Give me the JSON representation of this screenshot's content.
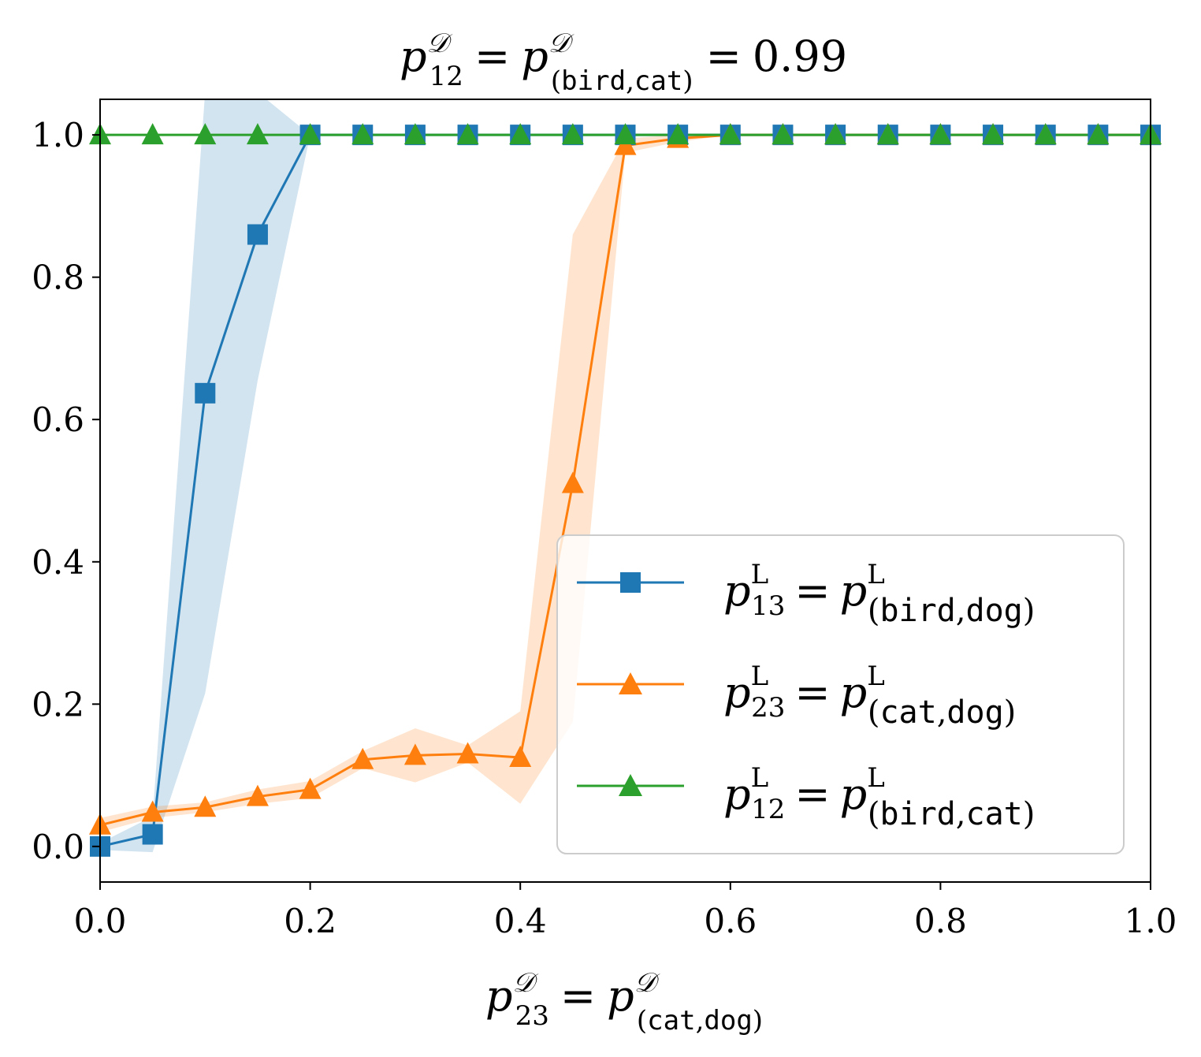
{
  "chart_data": {
    "type": "line",
    "title": {
      "lhs_var": "p",
      "lhs_sup": "𝒟",
      "lhs_sub": "12",
      "eq": "=",
      "rhs_var": "p",
      "rhs_sup": "𝒟",
      "rhs_sub_open": "(",
      "rhs_sub_a": "bird",
      "rhs_sub_comma": ",",
      "rhs_sub_b": "cat",
      "rhs_sub_close": ")",
      "eq2": "=",
      "value": "0.99"
    },
    "xlabel": {
      "lhs_var": "p",
      "lhs_sup": "𝒟",
      "lhs_sub": "23",
      "eq": "=",
      "rhs_var": "p",
      "rhs_sup": "𝒟",
      "rhs_sub_open": "(",
      "rhs_sub_a": "cat",
      "rhs_sub_comma": ",",
      "rhs_sub_b": "dog",
      "rhs_sub_close": ")"
    },
    "ylabel": "",
    "xlim": [
      0.0,
      1.0
    ],
    "ylim": [
      -0.05,
      1.05
    ],
    "xticks": [
      0.0,
      0.2,
      0.4,
      0.6,
      0.8,
      1.0
    ],
    "xtick_labels": [
      "0.0",
      "0.2",
      "0.4",
      "0.6",
      "0.8",
      "1.0"
    ],
    "yticks": [
      0.0,
      0.2,
      0.4,
      0.6,
      0.8,
      1.0
    ],
    "ytick_labels": [
      "0.0",
      "0.2",
      "0.4",
      "0.6",
      "0.8",
      "1.0"
    ],
    "grid": false,
    "legend_position": "lower-right",
    "series": [
      {
        "id": "p13",
        "color": "#1f77b4",
        "marker": "square",
        "label": {
          "var": "p",
          "sup": "L",
          "sub": "13",
          "eq": "=",
          "rvar": "p",
          "rsup": "L",
          "open": "(",
          "a": "bird",
          "comma": ",",
          "b": "dog",
          "close": ")"
        },
        "x": [
          0.0,
          0.05,
          0.1,
          0.15,
          0.2,
          0.25,
          0.3,
          0.35,
          0.4,
          0.45,
          0.5,
          0.55,
          0.6,
          0.65,
          0.7,
          0.75,
          0.8,
          0.85,
          0.9,
          0.95,
          1.0
        ],
        "y": [
          0.0,
          0.017,
          0.637,
          0.86,
          1.0,
          1.0,
          1.0,
          1.0,
          1.0,
          1.0,
          1.0,
          1.0,
          1.0,
          1.0,
          1.0,
          1.0,
          1.0,
          1.0,
          1.0,
          1.0,
          1.0
        ],
        "band_lower": [
          -0.005,
          -0.008,
          0.215,
          0.655,
          1.0,
          1.0,
          1.0,
          1.0,
          1.0,
          1.0,
          1.0,
          1.0,
          1.0,
          1.0,
          1.0,
          1.0,
          1.0,
          1.0,
          1.0,
          1.0,
          1.0
        ],
        "band_upper": [
          0.005,
          0.042,
          1.06,
          1.06,
          1.0,
          1.0,
          1.0,
          1.0,
          1.0,
          1.0,
          1.0,
          1.0,
          1.0,
          1.0,
          1.0,
          1.0,
          1.0,
          1.0,
          1.0,
          1.0,
          1.0
        ]
      },
      {
        "id": "p23",
        "color": "#ff7f0e",
        "marker": "triangle",
        "label": {
          "var": "p",
          "sup": "L",
          "sub": "23",
          "eq": "=",
          "rvar": "p",
          "rsup": "L",
          "open": "(",
          "a": "cat",
          "comma": ",",
          "b": "dog",
          "close": ")"
        },
        "x": [
          0.0,
          0.05,
          0.1,
          0.15,
          0.2,
          0.25,
          0.3,
          0.35,
          0.4,
          0.45,
          0.5,
          0.55,
          0.6,
          0.65,
          0.7,
          0.75,
          0.8,
          0.85,
          0.9,
          0.95,
          1.0
        ],
        "y": [
          0.03,
          0.048,
          0.055,
          0.07,
          0.08,
          0.122,
          0.128,
          0.13,
          0.125,
          0.51,
          0.985,
          0.995,
          1.0,
          1.0,
          1.0,
          1.0,
          1.0,
          1.0,
          1.0,
          1.0,
          1.0
        ],
        "band_lower": [
          0.02,
          0.04,
          0.048,
          0.06,
          0.068,
          0.11,
          0.09,
          0.118,
          0.06,
          0.175,
          0.975,
          0.99,
          1.0,
          1.0,
          1.0,
          1.0,
          1.0,
          1.0,
          1.0,
          1.0,
          1.0
        ],
        "band_upper": [
          0.04,
          0.056,
          0.062,
          0.08,
          0.092,
          0.134,
          0.166,
          0.142,
          0.19,
          0.86,
          0.995,
          1.0,
          1.0,
          1.0,
          1.0,
          1.0,
          1.0,
          1.0,
          1.0,
          1.0,
          1.0
        ]
      },
      {
        "id": "p12",
        "color": "#2ca02c",
        "marker": "triangle",
        "label": {
          "var": "p",
          "sup": "L",
          "sub": "12",
          "eq": "=",
          "rvar": "p",
          "rsup": "L",
          "open": "(",
          "a": "bird",
          "comma": ",",
          "b": "cat",
          "close": ")"
        },
        "x": [
          0.0,
          0.05,
          0.1,
          0.15,
          0.2,
          0.25,
          0.3,
          0.35,
          0.4,
          0.45,
          0.5,
          0.55,
          0.6,
          0.65,
          0.7,
          0.75,
          0.8,
          0.85,
          0.9,
          0.95,
          1.0
        ],
        "y": [
          1.0,
          1.0,
          1.0,
          1.0,
          1.0,
          1.0,
          1.0,
          1.0,
          1.0,
          1.0,
          1.0,
          1.0,
          1.0,
          1.0,
          1.0,
          1.0,
          1.0,
          1.0,
          1.0,
          1.0,
          1.0
        ]
      }
    ]
  }
}
